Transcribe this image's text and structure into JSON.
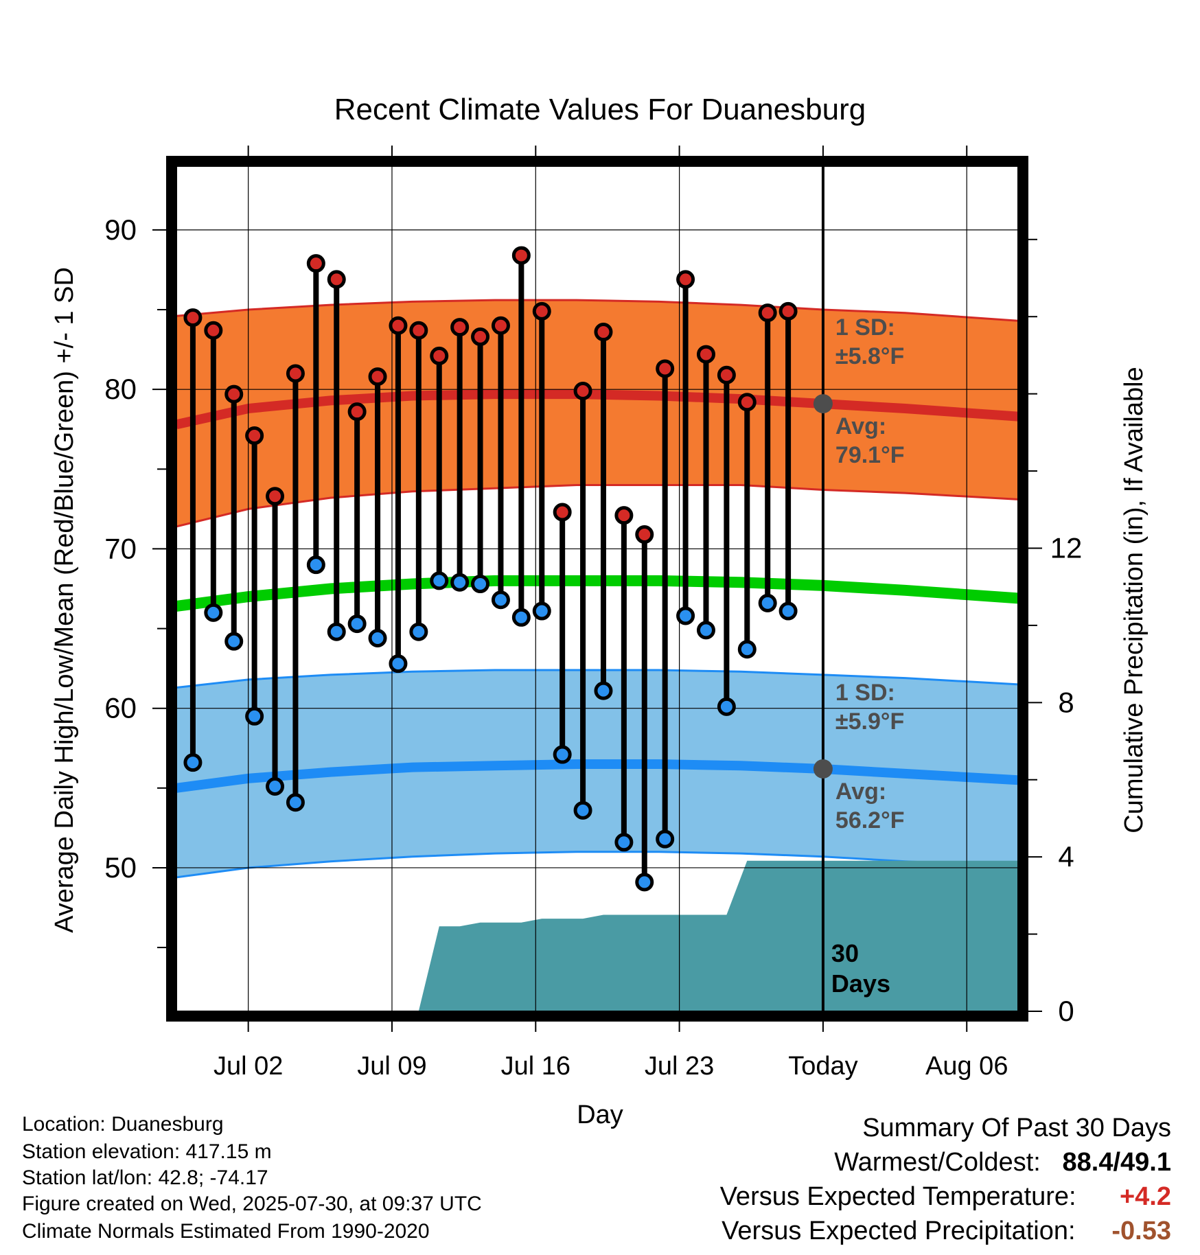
{
  "chart_data": {
    "type": "line",
    "title": "Recent Climate Values For Duanesburg",
    "xlabel": "Day",
    "ylabel_left": "Average Daily High/Low/Mean (Red/Blue/Green) +/- 1 SD",
    "ylabel_right": "Cumulative Precipitation (in), If Available",
    "x_tick_labels": [
      "Jul 02",
      "Jul 09",
      "Jul 16",
      "Jul 23",
      "Today",
      "Aug 06"
    ],
    "x_tick_days": [
      2,
      9,
      16,
      23,
      30,
      37
    ],
    "y_left_ticks": [
      50,
      60,
      70,
      80,
      90
    ],
    "y_right_ticks": [
      0,
      4,
      8,
      12
    ],
    "ylim_left": [
      41,
      94
    ],
    "xlim_days": [
      -1.5,
      39.5
    ],
    "highs": [
      {
        "day": -0.7,
        "value": 84.5
      },
      {
        "day": 0.3,
        "value": 83.7
      },
      {
        "day": 1.3,
        "value": 79.7
      },
      {
        "day": 2.3,
        "value": 77.1
      },
      {
        "day": 3.3,
        "value": 73.3
      },
      {
        "day": 4.3,
        "value": 81.0
      },
      {
        "day": 5.3,
        "value": 87.9
      },
      {
        "day": 6.3,
        "value": 86.9
      },
      {
        "day": 7.3,
        "value": 78.6
      },
      {
        "day": 8.3,
        "value": 80.8
      },
      {
        "day": 9.3,
        "value": 84.0
      },
      {
        "day": 10.3,
        "value": 83.7
      },
      {
        "day": 11.3,
        "value": 82.1
      },
      {
        "day": 12.3,
        "value": 83.9
      },
      {
        "day": 13.3,
        "value": 83.3
      },
      {
        "day": 14.3,
        "value": 84.0
      },
      {
        "day": 15.3,
        "value": 88.4
      },
      {
        "day": 16.3,
        "value": 84.9
      },
      {
        "day": 17.3,
        "value": 72.3
      },
      {
        "day": 18.3,
        "value": 79.9
      },
      {
        "day": 19.3,
        "value": 83.6
      },
      {
        "day": 20.3,
        "value": 72.1
      },
      {
        "day": 21.3,
        "value": 70.9
      },
      {
        "day": 22.3,
        "value": 81.3
      },
      {
        "day": 23.3,
        "value": 86.9
      },
      {
        "day": 24.3,
        "value": 82.2
      },
      {
        "day": 25.3,
        "value": 80.9
      },
      {
        "day": 26.3,
        "value": 79.2
      },
      {
        "day": 27.3,
        "value": 84.8
      },
      {
        "day": 28.3,
        "value": 84.9
      }
    ],
    "lows": [
      {
        "day": -0.7,
        "value": 56.6
      },
      {
        "day": 0.3,
        "value": 66.0
      },
      {
        "day": 1.3,
        "value": 64.2
      },
      {
        "day": 2.3,
        "value": 59.5
      },
      {
        "day": 3.3,
        "value": 55.1
      },
      {
        "day": 4.3,
        "value": 54.1
      },
      {
        "day": 5.3,
        "value": 69.0
      },
      {
        "day": 6.3,
        "value": 64.8
      },
      {
        "day": 7.3,
        "value": 65.3
      },
      {
        "day": 8.3,
        "value": 64.4
      },
      {
        "day": 9.3,
        "value": 62.8
      },
      {
        "day": 10.3,
        "value": 64.8
      },
      {
        "day": 11.3,
        "value": 68.0
      },
      {
        "day": 12.3,
        "value": 67.9
      },
      {
        "day": 13.3,
        "value": 67.8
      },
      {
        "day": 14.3,
        "value": 66.8
      },
      {
        "day": 15.3,
        "value": 65.7
      },
      {
        "day": 16.3,
        "value": 66.1
      },
      {
        "day": 17.3,
        "value": 57.1
      },
      {
        "day": 18.3,
        "value": 53.6
      },
      {
        "day": 19.3,
        "value": 61.1
      },
      {
        "day": 20.3,
        "value": 51.6
      },
      {
        "day": 21.3,
        "value": 49.1
      },
      {
        "day": 22.3,
        "value": 51.8
      },
      {
        "day": 23.3,
        "value": 65.8
      },
      {
        "day": 24.3,
        "value": 64.9
      },
      {
        "day": 25.3,
        "value": 60.1
      },
      {
        "day": 26.3,
        "value": 63.7
      },
      {
        "day": 27.3,
        "value": 66.6
      },
      {
        "day": 28.3,
        "value": 66.1
      }
    ],
    "normal_high": {
      "days": [
        -1.5,
        2,
        6,
        10,
        14,
        18,
        22,
        26,
        30,
        34,
        39.5
      ],
      "mean": [
        77.8,
        78.8,
        79.3,
        79.6,
        79.7,
        79.7,
        79.6,
        79.4,
        79.1,
        78.8,
        78.3
      ],
      "upper": [
        84.6,
        85.0,
        85.3,
        85.5,
        85.6,
        85.6,
        85.5,
        85.3,
        85.0,
        84.8,
        84.3
      ],
      "lower": [
        71.4,
        72.5,
        73.2,
        73.6,
        73.8,
        74.0,
        74.0,
        74.0,
        73.7,
        73.5,
        73.1
      ]
    },
    "normal_mean": {
      "days": [
        -1.5,
        2,
        6,
        10,
        14,
        18,
        22,
        26,
        30,
        34,
        39.5
      ],
      "values": [
        66.4,
        67.0,
        67.5,
        67.8,
        68.0,
        68.0,
        68.0,
        67.9,
        67.7,
        67.4,
        66.9
      ]
    },
    "normal_low": {
      "days": [
        -1.5,
        2,
        6,
        10,
        14,
        18,
        22,
        26,
        30,
        34,
        39.5
      ],
      "mean": [
        55.0,
        55.6,
        56.0,
        56.3,
        56.4,
        56.5,
        56.5,
        56.4,
        56.2,
        55.9,
        55.5
      ],
      "upper": [
        61.3,
        61.8,
        62.1,
        62.3,
        62.4,
        62.4,
        62.4,
        62.3,
        62.1,
        61.9,
        61.5
      ],
      "lower": [
        49.4,
        50.0,
        50.4,
        50.7,
        50.9,
        51.0,
        51.0,
        50.9,
        50.7,
        50.4,
        50.1
      ]
    },
    "precipitation": {
      "days": [
        10.3,
        11.3,
        12.3,
        13.3,
        15.3,
        16.3,
        18.3,
        19.3,
        25.3,
        26.3,
        39.5
      ],
      "values": [
        0,
        2.2,
        2.2,
        2.3,
        2.3,
        2.4,
        2.4,
        2.5,
        2.5,
        3.9,
        3.9
      ],
      "ylim": [
        0,
        21.9
      ]
    },
    "today_marker": {
      "day": 30,
      "label_line1": "30",
      "label_line2": "Days"
    },
    "today_avg_high": 79.1,
    "today_avg_low": 56.2,
    "annotations": {
      "high_sd_line1": "1 SD:",
      "high_sd_line2": "±5.8°F",
      "high_avg_line1": "Avg:",
      "high_avg_line2": "79.1°F",
      "low_sd_line1": "1 SD:",
      "low_sd_line2": "±5.9°F",
      "low_avg_line1": "Avg:",
      "low_avg_line2": "56.2°F"
    },
    "colors": {
      "high_band": "#f47a30",
      "high_mean": "#d42a25",
      "high_point": "#d42a25",
      "low_band": "#82c1e8",
      "low_mean": "#1e8cf5",
      "low_point": "#2a90f0",
      "mean_line": "#00cc00",
      "precip": "#4a9ba4",
      "annotation": "#4d4d4d",
      "warm_value": "#d42a25",
      "precip_value": "#a0522d"
    }
  },
  "footer": {
    "location": "Location: Duanesburg",
    "elevation": "Station elevation: 417.15 m",
    "latlon": "Station lat/lon: 42.8; -74.17",
    "created": "Figure created on Wed, 2025-07-30, at 09:37 UTC",
    "normals": "Climate Normals Estimated From 1990-2020"
  },
  "summary": {
    "title": "Summary Of Past 30 Days",
    "warm_cold_label": "Warmest/Coldest:",
    "warm_cold_value": "88.4/49.1",
    "temp_label": "Versus Expected Temperature:",
    "temp_value": "+4.2",
    "precip_label": "Versus Expected Precipitation:",
    "precip_value": "-0.53"
  }
}
